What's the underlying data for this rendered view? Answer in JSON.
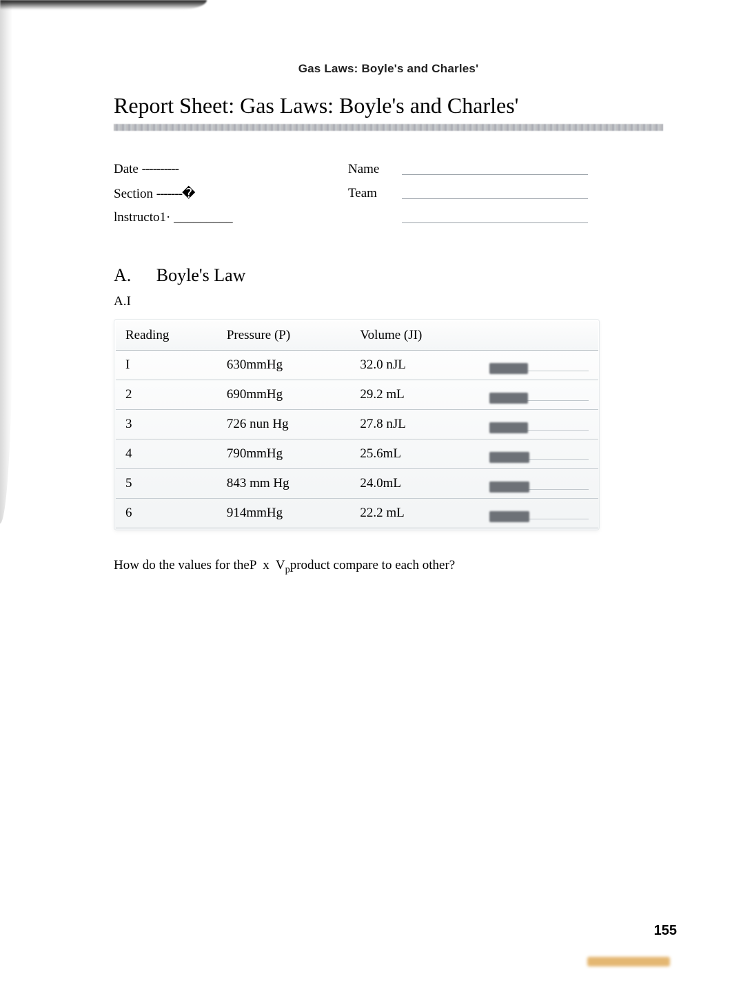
{
  "running_head": "Gas Laws: Boyle's and Charles'",
  "title": "Report Sheet: Gas Laws: Boyle's and Charles'",
  "info": {
    "date_label": "Date",
    "section_label": "Section",
    "instructor_label": "lnstructo1·",
    "name_label": "Name",
    "team_label": "Team",
    "date_blank": "----------",
    "section_blank": "-------�",
    "instructor_blank": "_________"
  },
  "section": {
    "letter": "A.",
    "title": "Boyle's Law",
    "subsection": "A.I"
  },
  "table": {
    "headers": [
      "Reading",
      "Pressure (P)",
      "Volume (JI)",
      ""
    ],
    "rows": [
      {
        "reading": "I",
        "pressure": "630mmHg",
        "volume": "32.0 nJL",
        "redact_w": 56
      },
      {
        "reading": "2",
        "pressure": "690mmHg",
        "volume": "29.2 mL",
        "redact_w": 56
      },
      {
        "reading": "3",
        "pressure": "726 nun Hg",
        "volume": "27.8 nJL",
        "redact_w": 56
      },
      {
        "reading": "4",
        "pressure": "790mmHg",
        "volume": "25.6mL",
        "redact_w": 58
      },
      {
        "reading": "5",
        "pressure": "843 mm Hg",
        "volume": "24.0mL",
        "redact_w": 58
      },
      {
        "reading": "6",
        "pressure": "914mmHg",
        "volume": "22.2 mL",
        "redact_w": 58
      }
    ]
  },
  "question_pre": "How do the values for the",
  "question_mid_p": "P",
  "question_mid_x": "x",
  "question_mid_v": "V",
  "question_post": "product compare to each other?",
  "page_number": "155",
  "colors": {
    "pixel_rule": "#b8b9bc",
    "table_border": "#c4cbd0",
    "redact": "#6d7177",
    "underline": "#9aa1a8",
    "bottom_bar": "#e0ab5a"
  }
}
